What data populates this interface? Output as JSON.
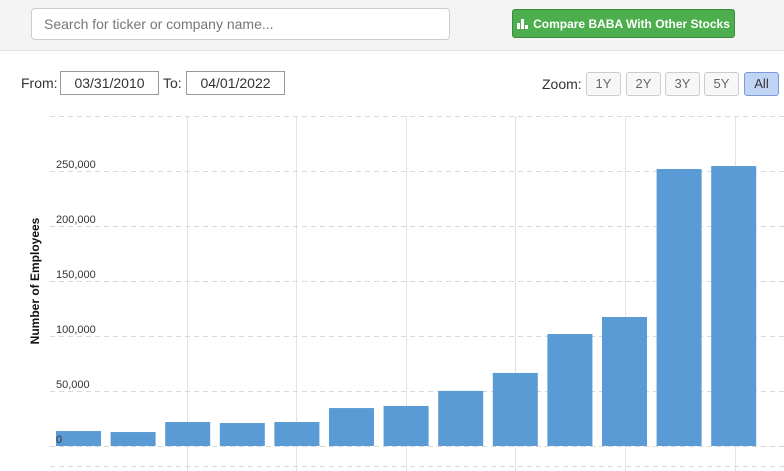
{
  "search_placeholder": "Search for ticker or company name...",
  "compare_button": "Compare BABA With Other Stocks",
  "from_label": "From:",
  "from_date": "03/31/2010",
  "to_label": "To:",
  "to_date": "04/01/2022",
  "zoom_label": "Zoom:",
  "zoom_options": [
    "1Y",
    "2Y",
    "3Y",
    "5Y",
    "All"
  ],
  "zoom_active": 4,
  "chart_data": {
    "type": "bar",
    "y_label": "Number of Employees",
    "values": [
      13600,
      12700,
      21800,
      20900,
      21800,
      34500,
      36400,
      50100,
      66400,
      101800,
      117300,
      251800,
      254500
    ],
    "color": "#5b9bd5",
    "ylim": [
      0,
      300000
    ],
    "yticks": [
      0,
      {
        "value": 50000,
        "label": "50,000"
      },
      {
        "value": 100000,
        "label": "100,000"
      },
      {
        "value": 150000,
        "label": "150,000"
      },
      {
        "value": 200000,
        "label": "200,000"
      },
      {
        "value": 250000,
        "label": "250,000"
      }
    ],
    "grid": true
  }
}
